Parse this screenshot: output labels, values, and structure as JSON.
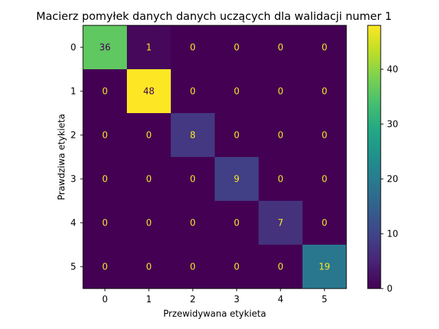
{
  "chart_data": {
    "type": "heatmap",
    "title": "Macierz pomyłek danych danych uczących dla walidacji numer 1",
    "xlabel": "Przewidywana etykieta",
    "ylabel": "Prawdziwa etykieta",
    "x_categories": [
      "0",
      "1",
      "2",
      "3",
      "4",
      "5"
    ],
    "y_categories": [
      "0",
      "1",
      "2",
      "3",
      "4",
      "5"
    ],
    "matrix": [
      [
        36,
        1,
        0,
        0,
        0,
        0
      ],
      [
        0,
        48,
        0,
        0,
        0,
        0
      ],
      [
        0,
        0,
        8,
        0,
        0,
        0
      ],
      [
        0,
        0,
        0,
        9,
        0,
        0
      ],
      [
        0,
        0,
        0,
        0,
        7,
        0
      ],
      [
        0,
        0,
        0,
        0,
        0,
        19
      ]
    ],
    "colormap": "viridis",
    "colorbar": {
      "min": 0,
      "max": 48,
      "ticks": [
        "0",
        "10",
        "20",
        "30",
        "40"
      ]
    }
  }
}
